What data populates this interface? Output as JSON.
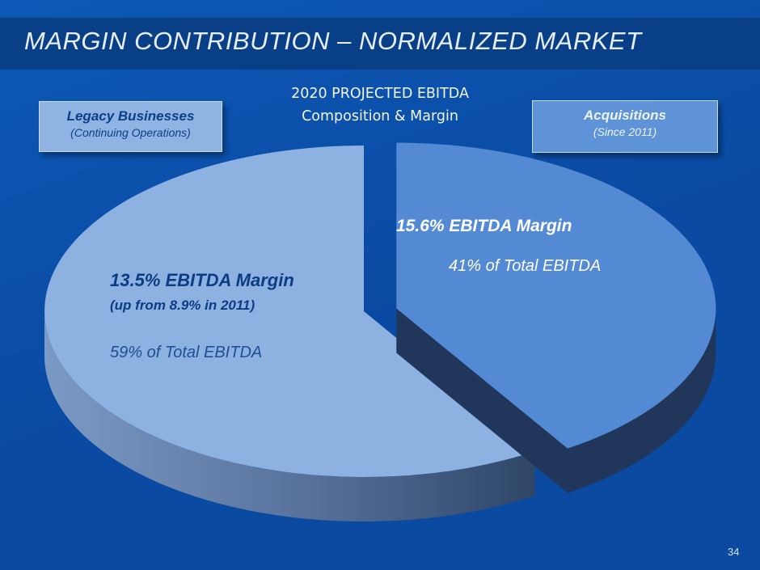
{
  "slide": {
    "title": "MARGIN CONTRIBUTION – NORMALIZED MARKET",
    "page_number": "34"
  },
  "boxes": {
    "legacy": {
      "title": "Legacy Businesses",
      "subtitle": "(Continuing Operations)"
    },
    "acquisitions": {
      "title": "Acquisitions",
      "subtitle": "(Since 2011)"
    }
  },
  "chart_data": {
    "type": "pie",
    "title_line1": "2020 PROJECTED EBITDA",
    "title_line2": "Composition & Margin",
    "slices": [
      {
        "name": "Acquisitions",
        "percent": 41,
        "exploded": true,
        "margin_label": "15.6% EBITDA Margin",
        "share_label": "41% of Total EBITDA",
        "color_top": "#548ad3",
        "color_side": "#20365a"
      },
      {
        "name": "Legacy Businesses",
        "percent": 59,
        "exploded": false,
        "margin_label": "13.5% EBITDA Margin",
        "margin_note": "(up from 8.9% in 2011)",
        "share_label": "59% of Total EBITDA",
        "color_top": "#8db2e2",
        "color_side": "#4f6a92"
      }
    ]
  }
}
